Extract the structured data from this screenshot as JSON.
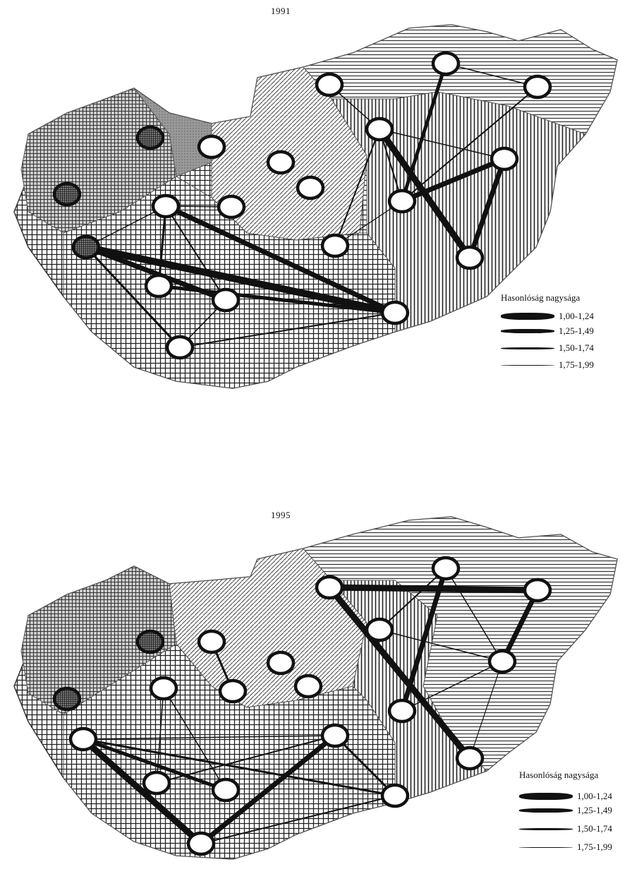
{
  "panels": [
    {
      "year": "1991",
      "legend": {
        "title": "Hasonlóság nagysága",
        "items": [
          {
            "label": "1,00-1,24",
            "level": 1
          },
          {
            "label": "1,25-1,49",
            "level": 2
          },
          {
            "label": "1,50-1,74",
            "level": 3
          },
          {
            "label": "1,75-1,99",
            "level": 4
          }
        ]
      }
    },
    {
      "year": "1995",
      "legend": {
        "title": "Hasonlóság nagysága",
        "items": [
          {
            "label": "1,00-1,24",
            "level": 1
          },
          {
            "label": "1,25-1,49",
            "level": 2
          },
          {
            "label": "1,50-1,74",
            "level": 3
          },
          {
            "label": "1,75-1,99",
            "level": 4
          }
        ]
      }
    }
  ]
}
